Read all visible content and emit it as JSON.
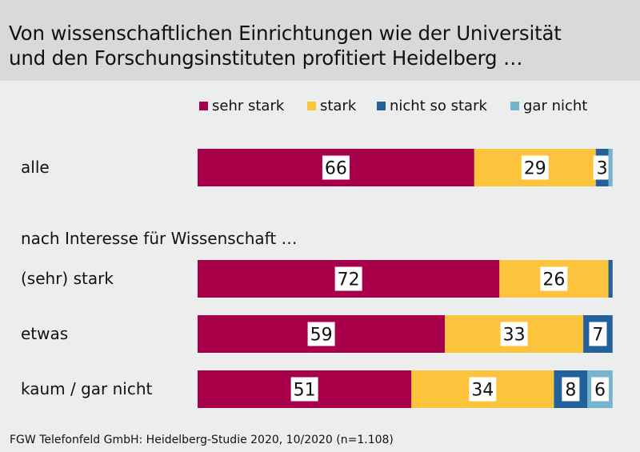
{
  "title_lines": [
    "Von wissenschaftlichen Einrichtungen wie der Universität",
    "und den Forschungsinstituten profitiert Heidelberg …"
  ],
  "section_label": "nach Interesse für Wissenschaft …",
  "footer": "FGW Telefonfeld GmbH: Heidelberg-Studie 2020, 10/2020 (n=1.108)",
  "chart_data": {
    "type": "bar",
    "orientation": "horizontal-stacked",
    "title": "Von wissenschaftlichen Einrichtungen wie der Universität und den Forschungsinstituten profitiert Heidelberg …",
    "categories": [
      "alle",
      "(sehr) stark",
      "etwas",
      "kaum / gar nicht"
    ],
    "legend_placement": "top-right",
    "xlim": [
      0,
      100
    ],
    "series": [
      {
        "name": "sehr stark",
        "color": "#a8004a",
        "values": [
          66,
          72,
          59,
          51
        ],
        "labels": [
          "66",
          "72",
          "59",
          "51"
        ]
      },
      {
        "name": "stark",
        "color": "#fdc33d",
        "values": [
          29,
          26,
          33,
          34
        ],
        "labels": [
          "29",
          "26",
          "33",
          "34"
        ]
      },
      {
        "name": "nicht so stark",
        "color": "#23619a",
        "values": [
          3,
          1,
          7,
          8
        ],
        "labels": [
          "3",
          "",
          "7",
          "8"
        ]
      },
      {
        "name": "gar nicht",
        "color": "#76b3cf",
        "values": [
          1,
          0,
          0,
          6
        ],
        "labels": [
          "",
          "",
          "",
          "6"
        ]
      }
    ]
  }
}
